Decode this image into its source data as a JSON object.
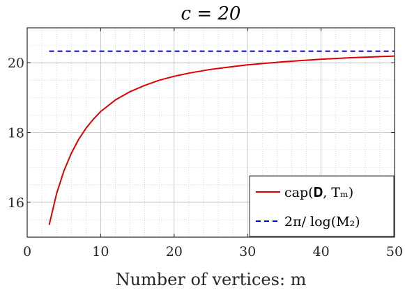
{
  "chart_data": {
    "type": "line",
    "title": "c = 20",
    "xlabel": "Number of vertices: m",
    "ylabel": "",
    "xlim": [
      0,
      50
    ],
    "ylim": [
      15,
      21
    ],
    "xticks": [
      0,
      10,
      20,
      30,
      40,
      50
    ],
    "yticks": [
      16,
      18,
      20
    ],
    "xtick_labels": [
      "0",
      "10",
      "20",
      "30",
      "40",
      "50"
    ],
    "ytick_labels": [
      "16",
      "18",
      "20"
    ],
    "grid": true,
    "minor_grid": true,
    "legend_position": "bottom-right",
    "series": [
      {
        "name": "cap(D, T_m)",
        "legend_label": "cap(𝐃, Tₘ)",
        "style": "solid",
        "color": "#e00000",
        "x": [
          3,
          4,
          5,
          6,
          7,
          8,
          9,
          10,
          12,
          14,
          16,
          18,
          20,
          22,
          25,
          28,
          30,
          35,
          40,
          45,
          50
        ],
        "y": [
          15.35,
          16.25,
          16.9,
          17.4,
          17.8,
          18.12,
          18.38,
          18.6,
          18.93,
          19.17,
          19.35,
          19.5,
          19.61,
          19.7,
          19.81,
          19.89,
          19.94,
          20.03,
          20.1,
          20.15,
          20.19
        ]
      },
      {
        "name": "2π/log(M_2)",
        "legend_label": "2π/ log(M₂)",
        "style": "dashed",
        "color": "#0000e0",
        "x": [
          3,
          50
        ],
        "y": [
          20.33,
          20.33
        ]
      }
    ]
  }
}
